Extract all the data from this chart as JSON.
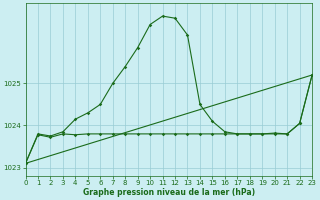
{
  "title": "Graphe pression niveau de la mer (hPa)",
  "bg_color": "#cceef2",
  "grid_color": "#99ccd4",
  "line_color": "#1a6b1a",
  "x_min": 0,
  "x_max": 23,
  "y_min": 1022.8,
  "y_max": 1026.9,
  "yticks": [
    1023,
    1024,
    1025
  ],
  "xticks": [
    0,
    1,
    2,
    3,
    4,
    5,
    6,
    7,
    8,
    9,
    10,
    11,
    12,
    13,
    14,
    15,
    16,
    17,
    18,
    19,
    20,
    21,
    22,
    23
  ],
  "series1_x": [
    0,
    1,
    2,
    3,
    4,
    5,
    6,
    7,
    8,
    9,
    10,
    11,
    12,
    13,
    14,
    15,
    16,
    17,
    18,
    19,
    20,
    21,
    22,
    23
  ],
  "series1_y": [
    1023.1,
    1023.8,
    1023.75,
    1023.85,
    1024.15,
    1024.3,
    1024.5,
    1025.0,
    1025.4,
    1025.85,
    1026.4,
    1026.6,
    1026.55,
    1026.15,
    1024.5,
    1024.1,
    1023.85,
    1023.8,
    1023.8,
    1023.8,
    1023.82,
    1023.8,
    1024.05,
    1025.2
  ],
  "series2_x": [
    0,
    1,
    2,
    3,
    4,
    5,
    6,
    7,
    8,
    9,
    10,
    11,
    12,
    13,
    14,
    15,
    16,
    17,
    18,
    19,
    20,
    21,
    22,
    23
  ],
  "series2_y": [
    1023.1,
    1023.78,
    1023.72,
    1023.8,
    1023.78,
    1023.8,
    1023.8,
    1023.8,
    1023.8,
    1023.8,
    1023.8,
    1023.8,
    1023.8,
    1023.8,
    1023.8,
    1023.8,
    1023.8,
    1023.8,
    1023.8,
    1023.8,
    1023.8,
    1023.8,
    1024.05,
    1025.2
  ],
  "series3_x": [
    0,
    23
  ],
  "series3_y": [
    1023.1,
    1025.2
  ]
}
